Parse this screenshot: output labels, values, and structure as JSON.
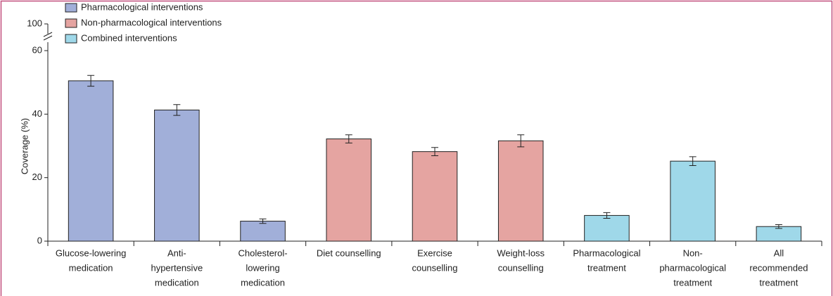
{
  "chart_data": {
    "type": "bar",
    "ylabel": "Coverage (%)",
    "categories": [
      [
        "Glucose-lowering",
        "medication"
      ],
      [
        "Anti-",
        "hypertensive",
        "medication"
      ],
      [
        "Cholesterol-",
        "lowering",
        "medication"
      ],
      [
        "Diet counselling"
      ],
      [
        "Exercise",
        "counselling"
      ],
      [
        "Weight-loss",
        "counselling"
      ],
      [
        "Pharmacological",
        "treatment"
      ],
      [
        "Non-",
        "pharmacological",
        "treatment"
      ],
      [
        "All",
        "recommended",
        "treatment"
      ]
    ],
    "series": [
      {
        "name": "Pharmacological interventions",
        "color": "#a1afd9",
        "values": [
          50.5,
          41.3,
          6.3,
          null,
          null,
          null,
          null,
          null,
          null
        ],
        "errors": [
          1.7,
          1.7,
          0.7,
          null,
          null,
          null,
          null,
          null,
          null
        ]
      },
      {
        "name": "Non-pharmacological interventions",
        "color": "#e5a4a1",
        "values": [
          null,
          null,
          null,
          32.2,
          28.2,
          31.6,
          null,
          null,
          null
        ],
        "errors": [
          null,
          null,
          null,
          1.3,
          1.3,
          1.9,
          null,
          null,
          null
        ]
      },
      {
        "name": "Combined interventions",
        "color": "#9fd8e9",
        "values": [
          null,
          null,
          null,
          null,
          null,
          null,
          8.1,
          25.2,
          4.6
        ],
        "errors": [
          null,
          null,
          null,
          null,
          null,
          null,
          0.9,
          1.4,
          0.6
        ]
      }
    ],
    "ylim": [
      0,
      60
    ],
    "yticks": [
      0,
      20,
      40,
      60
    ],
    "ybreak_tick": 100
  }
}
